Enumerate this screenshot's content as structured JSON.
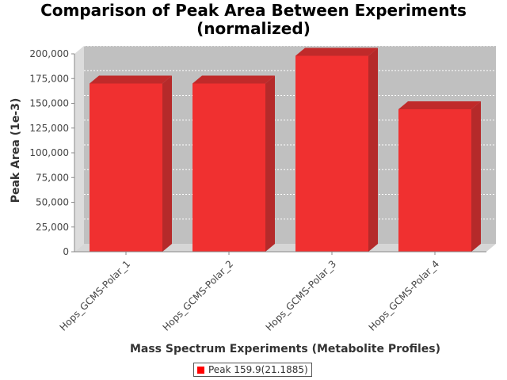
{
  "chart_data": {
    "type": "bar",
    "title_lines": [
      "Comparison of Peak Area Between Experiments",
      "(normalized)"
    ],
    "xlabel": "Mass Spectrum Experiments (Metabolite Profiles)",
    "ylabel": "Peak Area (1e-3)",
    "categories": [
      "Hops_GCMS-Polar_1",
      "Hops_GCMS-Polar_2",
      "Hops_GCMS-Polar_3",
      "Hops_GCMS-Polar_4"
    ],
    "series": [
      {
        "name": "Peak 159.9(21.1885)",
        "values": [
          170000,
          170000,
          198000,
          144000
        ],
        "color": "#ff0000"
      }
    ],
    "ylim": [
      0,
      200000
    ],
    "yticks": [
      0,
      25000,
      50000,
      75000,
      100000,
      125000,
      150000,
      175000,
      200000
    ],
    "ytick_labels": [
      "0",
      "25,000",
      "50,000",
      "75,000",
      "100,000",
      "125,000",
      "150,000",
      "175,000",
      "200,000"
    ],
    "grid": true,
    "legend_position": "bottom"
  }
}
